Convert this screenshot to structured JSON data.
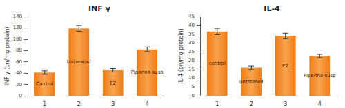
{
  "chart_data": [
    {
      "type": "bar",
      "title": "INF γ",
      "y_label": "INF γ (pn/mg protein)",
      "categories": [
        "1",
        "2",
        "3",
        "4"
      ],
      "values": [
        41,
        119,
        45,
        82
      ],
      "errors": [
        3,
        5,
        3,
        4
      ],
      "annotations": [
        "Control",
        "Untreated",
        "F2",
        "Piperine-susp"
      ],
      "color": "#ef7d18",
      "ylim": [
        0,
        140
      ],
      "yticks": [
        0,
        20,
        40,
        60,
        80,
        100,
        120,
        140
      ],
      "grid": false
    },
    {
      "type": "bar",
      "title": "IL-4",
      "y_label": "IL-4 (pn/mg protein)",
      "categories": [
        "1",
        "2",
        "3",
        "4"
      ],
      "values": [
        36.5,
        15.8,
        34,
        22.5
      ],
      "errors": [
        1.8,
        1,
        1.5,
        1
      ],
      "annotations": [
        "control",
        "untreated",
        "F2",
        "Piperine susp"
      ],
      "color": "#ef7d18",
      "ylim": [
        0,
        45
      ],
      "yticks": [
        0,
        5,
        10,
        15,
        20,
        25,
        30,
        35,
        40,
        45
      ],
      "grid": false
    }
  ]
}
